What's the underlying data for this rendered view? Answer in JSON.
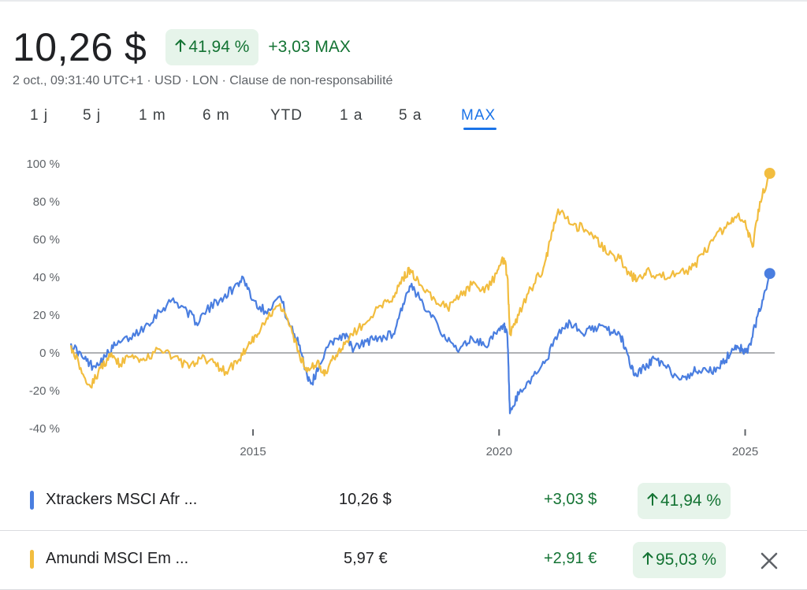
{
  "header": {
    "price": "10,26 $",
    "change_percent": "41,94 %",
    "change_max": "+3,03 MAX",
    "arrow_icon": "arrow-up-icon"
  },
  "meta": "2 oct., 09:31:40 UTC+1 · USD · LON · Clause de non-responsabilité",
  "tabs": [
    "1 j",
    "5 j",
    "1 m",
    "6 m",
    "YTD",
    "1 a",
    "5 a",
    "MAX"
  ],
  "active_tab": "MAX",
  "colors": {
    "positive": "#137333",
    "positive_bg": "#e6f4ea",
    "accent": "#1a73e8",
    "series_blue": "#4a7ee0",
    "series_yellow": "#f2bd3f"
  },
  "chart_data": {
    "type": "line",
    "y_ticks": [
      "100 %",
      "80 %",
      "60 %",
      "40 %",
      "20 %",
      "0 %",
      "-20 %",
      "-40 %"
    ],
    "x_ticks": [
      {
        "label": "2015",
        "value": 2015
      },
      {
        "label": "2020",
        "value": 2020
      },
      {
        "label": "2025",
        "value": 2025
      }
    ],
    "xlim": [
      2011.3,
      2025.6
    ],
    "ylim": [
      -40,
      100
    ],
    "baseline": 0,
    "series": [
      {
        "name": "Xtrackers MSCI Afr ...",
        "color": "#4a7ee0",
        "points": [
          [
            2011.3,
            5
          ],
          [
            2011.55,
            -3
          ],
          [
            2011.75,
            -7
          ],
          [
            2012.0,
            -2
          ],
          [
            2012.2,
            4
          ],
          [
            2012.5,
            8
          ],
          [
            2012.8,
            14
          ],
          [
            2013.1,
            22
          ],
          [
            2013.35,
            28
          ],
          [
            2013.6,
            24
          ],
          [
            2013.85,
            16
          ],
          [
            2014.05,
            22
          ],
          [
            2014.35,
            29
          ],
          [
            2014.6,
            34
          ],
          [
            2014.8,
            40
          ],
          [
            2015.0,
            28
          ],
          [
            2015.25,
            22
          ],
          [
            2015.55,
            30
          ],
          [
            2015.75,
            14
          ],
          [
            2015.95,
            4
          ],
          [
            2016.1,
            -12
          ],
          [
            2016.2,
            -16
          ],
          [
            2016.35,
            -6
          ],
          [
            2016.6,
            6
          ],
          [
            2016.85,
            10
          ],
          [
            2017.05,
            2
          ],
          [
            2017.3,
            6
          ],
          [
            2017.55,
            8
          ],
          [
            2017.85,
            10
          ],
          [
            2018.05,
            26
          ],
          [
            2018.2,
            35
          ],
          [
            2018.4,
            28
          ],
          [
            2018.65,
            20
          ],
          [
            2018.95,
            6
          ],
          [
            2019.2,
            2
          ],
          [
            2019.45,
            8
          ],
          [
            2019.7,
            4
          ],
          [
            2019.95,
            10
          ],
          [
            2020.1,
            14
          ],
          [
            2020.17,
            8
          ],
          [
            2020.22,
            -32
          ],
          [
            2020.4,
            -22
          ],
          [
            2020.7,
            -12
          ],
          [
            2020.95,
            -4
          ],
          [
            2021.2,
            10
          ],
          [
            2021.45,
            16
          ],
          [
            2021.7,
            10
          ],
          [
            2021.95,
            14
          ],
          [
            2022.2,
            12
          ],
          [
            2022.45,
            10
          ],
          [
            2022.6,
            0
          ],
          [
            2022.75,
            -12
          ],
          [
            2022.95,
            -8
          ],
          [
            2023.15,
            -3
          ],
          [
            2023.4,
            -8
          ],
          [
            2023.7,
            -14
          ],
          [
            2023.95,
            -10
          ],
          [
            2024.15,
            -8
          ],
          [
            2024.4,
            -10
          ],
          [
            2024.6,
            -4
          ],
          [
            2024.8,
            4
          ],
          [
            2024.95,
            2
          ],
          [
            2025.05,
            0
          ],
          [
            2025.2,
            14
          ],
          [
            2025.35,
            28
          ],
          [
            2025.5,
            42
          ]
        ]
      },
      {
        "name": "Amundi MSCI Em ...",
        "color": "#f2bd3f",
        "points": [
          [
            2011.3,
            4
          ],
          [
            2011.5,
            -8
          ],
          [
            2011.7,
            -18
          ],
          [
            2011.9,
            -8
          ],
          [
            2012.1,
            -2
          ],
          [
            2012.3,
            -6
          ],
          [
            2012.55,
            -1
          ],
          [
            2012.8,
            -4
          ],
          [
            2013.1,
            2
          ],
          [
            2013.4,
            -2
          ],
          [
            2013.7,
            -8
          ],
          [
            2013.95,
            -3
          ],
          [
            2014.2,
            -5
          ],
          [
            2014.45,
            -10
          ],
          [
            2014.7,
            -4
          ],
          [
            2014.9,
            4
          ],
          [
            2015.1,
            10
          ],
          [
            2015.3,
            18
          ],
          [
            2015.55,
            26
          ],
          [
            2015.75,
            14
          ],
          [
            2015.95,
            -2
          ],
          [
            2016.1,
            -10
          ],
          [
            2016.3,
            -5
          ],
          [
            2016.45,
            -12
          ],
          [
            2016.6,
            -4
          ],
          [
            2016.8,
            2
          ],
          [
            2017.0,
            10
          ],
          [
            2017.3,
            16
          ],
          [
            2017.6,
            25
          ],
          [
            2017.85,
            30
          ],
          [
            2018.05,
            40
          ],
          [
            2018.2,
            44
          ],
          [
            2018.4,
            36
          ],
          [
            2018.7,
            28
          ],
          [
            2018.95,
            24
          ],
          [
            2019.2,
            30
          ],
          [
            2019.45,
            36
          ],
          [
            2019.7,
            32
          ],
          [
            2019.95,
            42
          ],
          [
            2020.1,
            50
          ],
          [
            2020.17,
            40
          ],
          [
            2020.22,
            10
          ],
          [
            2020.4,
            20
          ],
          [
            2020.65,
            34
          ],
          [
            2020.9,
            45
          ],
          [
            2021.05,
            60
          ],
          [
            2021.2,
            76
          ],
          [
            2021.45,
            68
          ],
          [
            2021.7,
            66
          ],
          [
            2021.95,
            62
          ],
          [
            2022.2,
            52
          ],
          [
            2022.45,
            50
          ],
          [
            2022.65,
            42
          ],
          [
            2022.8,
            38
          ],
          [
            2023.0,
            44
          ],
          [
            2023.3,
            40
          ],
          [
            2023.6,
            42
          ],
          [
            2023.9,
            44
          ],
          [
            2024.15,
            52
          ],
          [
            2024.4,
            62
          ],
          [
            2024.6,
            66
          ],
          [
            2024.8,
            72
          ],
          [
            2025.0,
            70
          ],
          [
            2025.15,
            56
          ],
          [
            2025.3,
            80
          ],
          [
            2025.5,
            95
          ]
        ]
      }
    ]
  },
  "comparison": [
    {
      "name": "Xtrackers MSCI Afr ...",
      "price": "10,26 $",
      "change": "+3,03 $",
      "change_percent": "41,94 %",
      "color": "#4a7ee0"
    },
    {
      "name": "Amundi MSCI Em ...",
      "price": "5,97 €",
      "change": "+2,91 €",
      "change_percent": "95,03 %",
      "color": "#f2bd3f",
      "close_icon": "close-icon"
    }
  ]
}
